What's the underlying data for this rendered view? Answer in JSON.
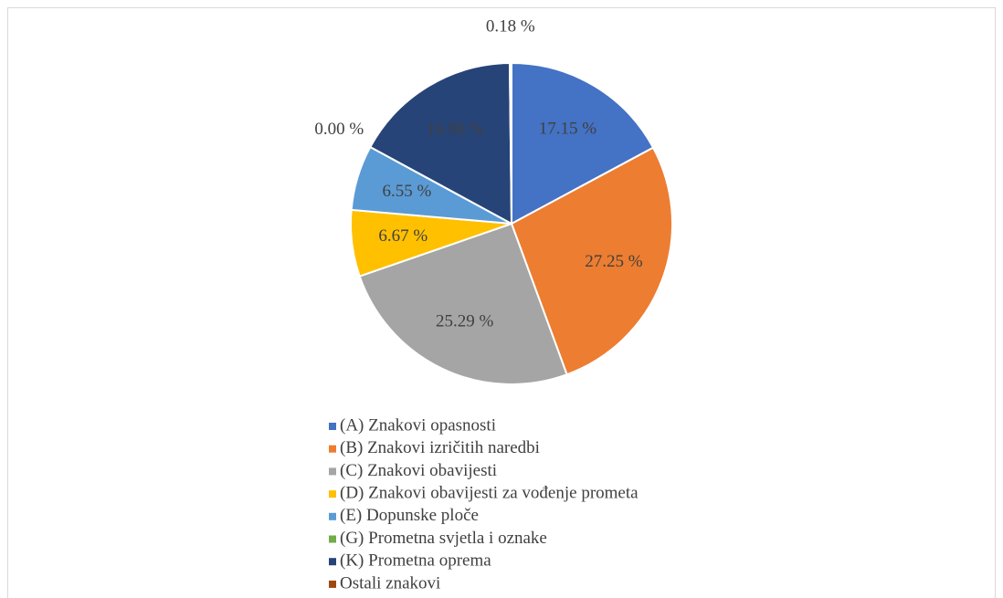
{
  "chart_data": {
    "type": "pie",
    "categories": [
      "(A) Znakovi opasnosti",
      "(B) Znakovi izričitih naredbi",
      "(C) Znakovi obavijesti",
      "(D) Znakovi obavijesti za vođenje prometa",
      "(E) Dopunske ploče",
      "(G) Prometna svjetla i oznake",
      "(K) Prometna oprema",
      "Ostali znakovi"
    ],
    "values": [
      17.15,
      27.25,
      25.29,
      6.67,
      6.55,
      0.0,
      16.9,
      0.18
    ],
    "value_labels": [
      "17.15 %",
      "27.25 %",
      "25.29 %",
      "6.67 %",
      "6.55 %",
      "0.00 %",
      "16.90 %",
      "0.18 %"
    ],
    "colors": [
      "#4472c4",
      "#ed7d31",
      "#a5a5a5",
      "#ffc000",
      "#5b9bd5",
      "#70ad47",
      "#264478",
      "#9e480e"
    ],
    "legend": "bottom"
  }
}
